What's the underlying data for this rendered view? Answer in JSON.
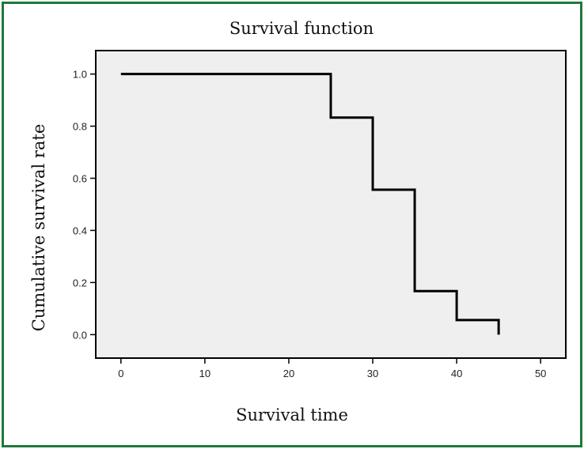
{
  "chart_data": {
    "type": "line",
    "step": true,
    "title": "Survival function",
    "xlabel": "Survival time",
    "ylabel": "Cumulative survival rate",
    "xlim": [
      -3,
      53
    ],
    "ylim": [
      -0.09,
      1.09
    ],
    "xticks": [
      "0",
      "10",
      "20",
      "30",
      "40",
      "50"
    ],
    "yticks": [
      "0.0",
      "0.2",
      "0.4",
      "0.6",
      "0.8",
      "1.0"
    ],
    "grid": false,
    "plot_background": "#efefef",
    "frame_color": "#1e7a3c",
    "series": [
      {
        "x": [
          0,
          25,
          30,
          35,
          40,
          45
        ],
        "y": [
          1.0,
          0.833,
          0.556,
          0.167,
          0.056,
          0.0
        ]
      }
    ]
  }
}
